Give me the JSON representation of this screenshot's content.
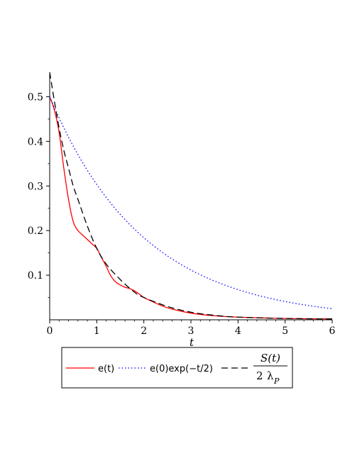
{
  "chart_data": {
    "type": "line",
    "title": "",
    "xlabel": "t",
    "ylabel": "",
    "xlim": [
      0,
      6
    ],
    "ylim": [
      0,
      0.55
    ],
    "xticks": [
      "0",
      "1",
      "2",
      "3",
      "4",
      "5",
      "6"
    ],
    "yticks": [
      "0.1",
      "0.2",
      "0.3",
      "0.4",
      "0.5"
    ],
    "legend_position": "bottom",
    "grid": false,
    "series": [
      {
        "name": "e(t)",
        "color": "#ff0000",
        "style": "solid",
        "x": [
          0,
          0.1,
          0.2,
          0.3,
          0.4,
          0.5,
          0.6,
          0.7,
          0.8,
          0.9,
          1.0,
          1.1,
          1.2,
          1.3,
          1.4,
          1.5,
          1.6,
          1.7,
          1.8,
          1.9,
          2.0,
          2.2,
          2.5,
          3.0,
          3.5,
          4.0,
          5.0,
          6.0
        ],
        "y": [
          0.5,
          0.47,
          0.42,
          0.34,
          0.27,
          0.22,
          0.2,
          0.19,
          0.18,
          0.17,
          0.16,
          0.14,
          0.12,
          0.098,
          0.085,
          0.078,
          0.073,
          0.07,
          0.065,
          0.058,
          0.05,
          0.04,
          0.027,
          0.015,
          0.009,
          0.006,
          0.003,
          0.002
        ]
      },
      {
        "name": "e(0)exp(−t/2)",
        "color": "#0000ff",
        "style": "dotted",
        "function": "0.5*exp(-t/2)",
        "x": [
          0,
          0.5,
          1,
          1.5,
          2,
          2.5,
          3,
          3.5,
          4,
          4.5,
          5,
          5.5,
          6
        ],
        "y": [
          0.5,
          0.389,
          0.303,
          0.236,
          0.184,
          0.143,
          0.112,
          0.087,
          0.068,
          0.053,
          0.041,
          0.032,
          0.025
        ]
      },
      {
        "name": "S(t) / 2 λ_P",
        "color": "#000000",
        "style": "dashed",
        "x": [
          0,
          0.1,
          0.2,
          0.3,
          0.4,
          0.5,
          0.6,
          0.8,
          1.0,
          1.2,
          1.5,
          1.8,
          2.0,
          2.5,
          3.0,
          3.5,
          4.0,
          5.0,
          6.0
        ],
        "y": [
          0.555,
          0.49,
          0.43,
          0.38,
          0.34,
          0.3,
          0.27,
          0.21,
          0.16,
          0.125,
          0.09,
          0.062,
          0.05,
          0.03,
          0.017,
          0.01,
          0.006,
          0.003,
          0.002
        ]
      }
    ]
  },
  "legend": {
    "item1": "e(t)",
    "item2": "e(0)exp(−t/2)",
    "item3_num": "S(t)",
    "item3_den_num": "2",
    "item3_den_sym": "λ",
    "item3_den_sub": "P"
  }
}
